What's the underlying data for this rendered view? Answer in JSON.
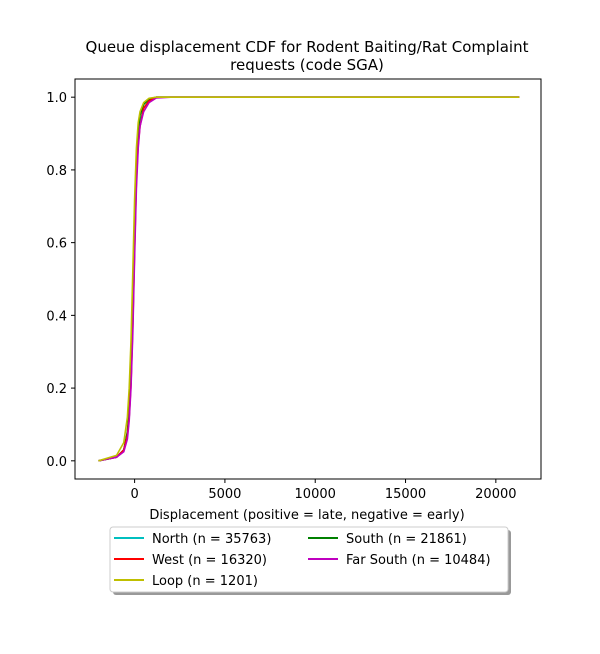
{
  "chart_data": {
    "type": "line",
    "title_line1": "Queue displacement CDF for Rodent Baiting/Rat Complaint",
    "title_line2": "requests (code SGA)",
    "xlabel": "Displacement (positive = late, negative = early)",
    "ylabel": "",
    "xlim": [
      -3300,
      22500
    ],
    "ylim": [
      -0.05,
      1.05
    ],
    "xticks": [
      0,
      5000,
      10000,
      15000,
      20000
    ],
    "xtick_labels": [
      "0",
      "5000",
      "10000",
      "15000",
      "20000"
    ],
    "yticks": [
      0.0,
      0.2,
      0.4,
      0.6,
      0.8,
      1.0
    ],
    "ytick_labels": [
      "0.0",
      "0.2",
      "0.4",
      "0.6",
      "0.8",
      "1.0"
    ],
    "grid": false,
    "legend_placement": "below",
    "series": [
      {
        "name": "North (n = 35763)",
        "color": "#00bfbf",
        "x": [
          -2000,
          -1000,
          -600,
          -400,
          -300,
          -200,
          -100,
          0,
          100,
          200,
          300,
          500,
          800,
          1200,
          2000,
          21300
        ],
        "y": [
          0.0,
          0.01,
          0.03,
          0.07,
          0.12,
          0.22,
          0.38,
          0.6,
          0.78,
          0.88,
          0.93,
          0.97,
          0.99,
          1.0,
          1.0,
          1.0
        ]
      },
      {
        "name": "South (n = 21861)",
        "color": "#008000",
        "x": [
          -2000,
          -1000,
          -600,
          -400,
          -300,
          -200,
          -100,
          0,
          100,
          200,
          300,
          500,
          800,
          1200,
          2000,
          21300
        ],
        "y": [
          0.0,
          0.01,
          0.03,
          0.08,
          0.14,
          0.25,
          0.43,
          0.66,
          0.83,
          0.91,
          0.95,
          0.98,
          0.995,
          1.0,
          1.0,
          1.0
        ]
      },
      {
        "name": "West (n = 16320)",
        "color": "#ff0000",
        "x": [
          -2000,
          -1000,
          -600,
          -400,
          -300,
          -200,
          -100,
          0,
          100,
          200,
          300,
          500,
          800,
          1200,
          2000,
          21300
        ],
        "y": [
          0.0,
          0.01,
          0.03,
          0.07,
          0.12,
          0.21,
          0.37,
          0.58,
          0.77,
          0.87,
          0.92,
          0.97,
          0.99,
          1.0,
          1.0,
          1.0
        ]
      },
      {
        "name": "Far South (n = 10484)",
        "color": "#bf00bf",
        "x": [
          -2000,
          -1000,
          -600,
          -400,
          -300,
          -200,
          -100,
          0,
          100,
          200,
          300,
          500,
          800,
          1200,
          2000,
          21300
        ],
        "y": [
          0.0,
          0.01,
          0.025,
          0.06,
          0.11,
          0.2,
          0.35,
          0.56,
          0.75,
          0.86,
          0.92,
          0.96,
          0.985,
          0.998,
          1.0,
          1.0
        ]
      },
      {
        "name": "Loop (n = 1201)",
        "color": "#bfbf00",
        "x": [
          -2000,
          -1000,
          -600,
          -400,
          -300,
          -200,
          -100,
          0,
          100,
          200,
          300,
          500,
          800,
          1200,
          2000,
          21300
        ],
        "y": [
          0.0,
          0.015,
          0.05,
          0.12,
          0.2,
          0.33,
          0.52,
          0.72,
          0.86,
          0.93,
          0.96,
          0.985,
          0.997,
          1.0,
          1.0,
          1.0
        ]
      }
    ],
    "legend_order": [
      "North (n = 35763)",
      "West (n = 16320)",
      "Loop (n = 1201)",
      "South (n = 21861)",
      "Far South (n = 10484)"
    ]
  }
}
